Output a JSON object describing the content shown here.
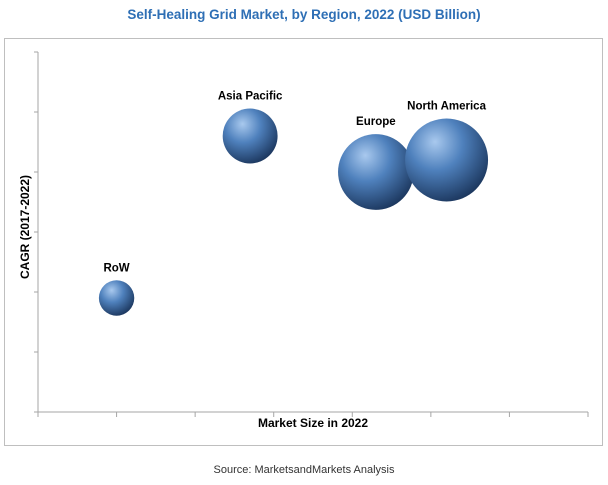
{
  "title": "Self-Healing Grid Market, by Region, 2022 (USD Billion)",
  "source": "Source: MarketsandMarkets Analysis",
  "chart_data": {
    "type": "scatter",
    "subtype": "bubble",
    "title": "Self-Healing Grid Market, by Region, 2022 (USD Billion)",
    "xlabel": "Market Size in 2022",
    "ylabel": "CAGR (2017-2022)",
    "xlim": [
      0,
      7
    ],
    "ylim": [
      0,
      6
    ],
    "grid": false,
    "tick_labels_shown": false,
    "series": [
      {
        "name": "Asia Pacific",
        "x": 2.7,
        "y": 4.6,
        "size": 4.5
      },
      {
        "name": "Europe",
        "x": 4.3,
        "y": 4.0,
        "size": 6.2
      },
      {
        "name": "North America",
        "x": 5.2,
        "y": 4.2,
        "size": 6.8
      },
      {
        "name": "RoW",
        "x": 1.0,
        "y": 1.9,
        "size": 2.9
      }
    ],
    "colors": {
      "bubble_light": "#a9c9ee",
      "bubble_mid": "#4f81bd",
      "bubble_dark": "#1b365d",
      "axis": "#a6a6a6"
    }
  }
}
